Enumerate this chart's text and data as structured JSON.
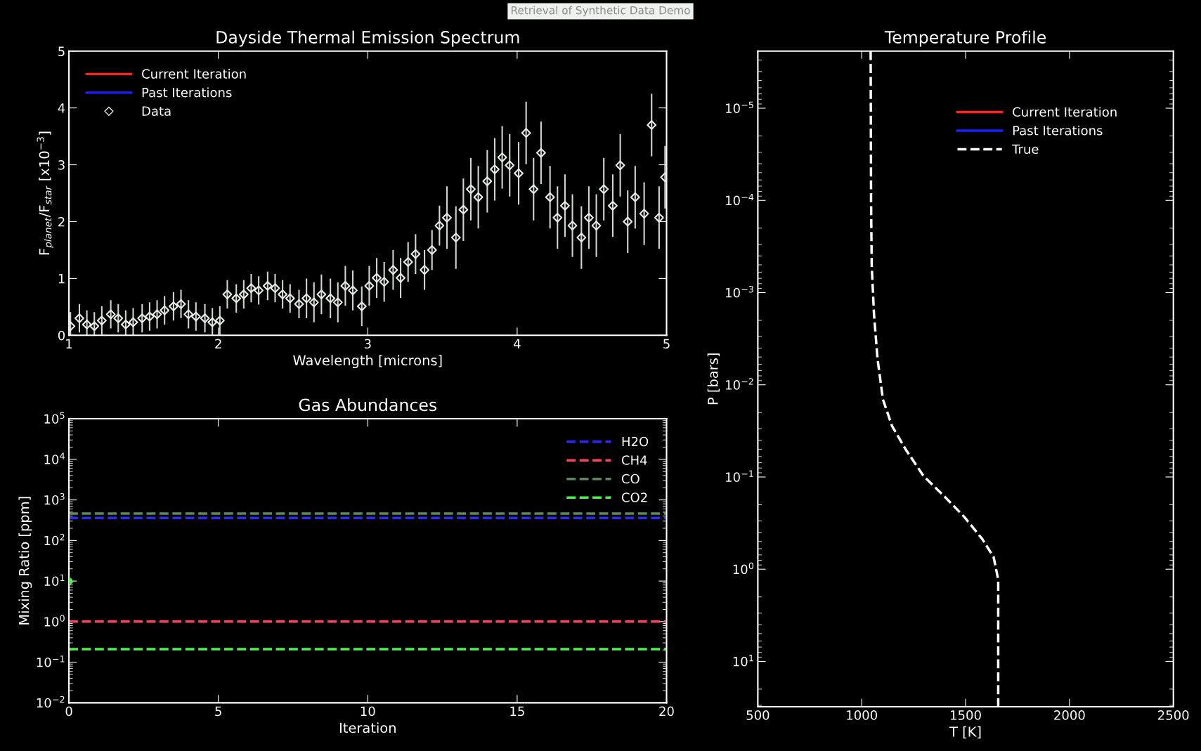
{
  "chart_data": [
    {
      "type": "scatter",
      "title": "Dayside Thermal Emission Spectrum",
      "xlabel": "Wavelength [microns]",
      "ylabel": "F$_{planet}$/F$_{star}$ [x10$^{−3}$]",
      "annotations": [
        "Retrieval of Synthetic Data Demo"
      ],
      "xlim": [
        1,
        5
      ],
      "xticks": [
        1,
        2,
        3,
        4,
        5
      ],
      "ylim": [
        0,
        5
      ],
      "yticks": [
        0,
        1,
        2,
        3,
        4,
        5
      ],
      "grid": false,
      "legend": "top left",
      "series": [
        {
          "name": "Current Iteration",
          "type": "line",
          "color": "#ff2020"
        },
        {
          "name": "Past Iterations",
          "type": "line",
          "color": "#2020ff"
        },
        {
          "name": "Data",
          "color": "#e8ece8",
          "marker": "diamond",
          "x": [
            1.01,
            1.07,
            1.12,
            1.17,
            1.22,
            1.28,
            1.33,
            1.38,
            1.43,
            1.49,
            1.54,
            1.59,
            1.64,
            1.7,
            1.75,
            1.8,
            1.85,
            1.91,
            1.96,
            2.01,
            2.06,
            2.12,
            2.17,
            2.22,
            2.27,
            2.33,
            2.38,
            2.43,
            2.48,
            2.54,
            2.59,
            2.64,
            2.69,
            2.75,
            2.8,
            2.85,
            2.9,
            2.96,
            3.01,
            3.06,
            3.11,
            3.17,
            3.22,
            3.27,
            3.32,
            3.38,
            3.43,
            3.48,
            3.53,
            3.59,
            3.64,
            3.69,
            3.74,
            3.8,
            3.85,
            3.9,
            3.95,
            4.01,
            4.06,
            4.11,
            4.16,
            4.22,
            4.27,
            4.32,
            4.37,
            4.43,
            4.48,
            4.53,
            4.58,
            4.64,
            4.69,
            4.74,
            4.79,
            4.85,
            4.9,
            4.95,
            4.99
          ],
          "values": [
            0.16,
            0.3,
            0.19,
            0.16,
            0.26,
            0.37,
            0.3,
            0.19,
            0.23,
            0.3,
            0.33,
            0.37,
            0.44,
            0.51,
            0.55,
            0.37,
            0.33,
            0.3,
            0.23,
            0.26,
            0.72,
            0.65,
            0.72,
            0.83,
            0.79,
            0.87,
            0.83,
            0.72,
            0.65,
            0.55,
            0.65,
            0.58,
            0.72,
            0.65,
            0.58,
            0.87,
            0.79,
            0.51,
            0.87,
            1.01,
            0.94,
            1.15,
            1.01,
            1.29,
            1.43,
            1.15,
            1.5,
            1.93,
            2.07,
            1.72,
            2.21,
            2.57,
            2.43,
            2.71,
            2.92,
            3.13,
            2.99,
            2.85,
            3.56,
            2.57,
            3.21,
            2.43,
            2.07,
            2.28,
            1.93,
            1.72,
            2.07,
            1.93,
            2.57,
            2.28,
            2.99,
            2.0,
            2.43,
            2.14,
            3.7,
            2.07,
            2.78
          ],
          "errors": [
            0.25,
            0.25,
            0.25,
            0.25,
            0.25,
            0.25,
            0.25,
            0.25,
            0.25,
            0.25,
            0.25,
            0.25,
            0.25,
            0.25,
            0.25,
            0.25,
            0.25,
            0.25,
            0.25,
            0.25,
            0.25,
            0.25,
            0.25,
            0.25,
            0.25,
            0.25,
            0.25,
            0.25,
            0.25,
            0.25,
            0.35,
            0.35,
            0.35,
            0.35,
            0.35,
            0.35,
            0.35,
            0.35,
            0.35,
            0.35,
            0.35,
            0.35,
            0.35,
            0.35,
            0.35,
            0.35,
            0.35,
            0.35,
            0.55,
            0.55,
            0.55,
            0.55,
            0.55,
            0.55,
            0.55,
            0.55,
            0.55,
            0.55,
            0.55,
            0.55,
            0.55,
            0.55,
            0.55,
            0.55,
            0.55,
            0.55,
            0.55,
            0.55,
            0.55,
            0.55,
            0.55,
            0.55,
            0.55,
            0.55,
            0.55,
            0.55,
            0.55
          ]
        }
      ]
    },
    {
      "type": "line",
      "title": "Gas Abundances",
      "xlabel": "Iteration",
      "ylabel": "Mixing Ratio [ppm]",
      "log": "y",
      "xlim": [
        0,
        20
      ],
      "xticks": [
        0,
        5,
        10,
        15,
        20
      ],
      "ylim": [
        0.01,
        100000
      ],
      "yticks": [
        {
          "value": 0.01,
          "label": "10$^{−2}$"
        },
        {
          "value": 0.1,
          "label": "10$^{−1}$"
        },
        {
          "value": 1,
          "label": "10$^{0}$"
        },
        {
          "value": 10,
          "label": "10$^{1}$"
        },
        {
          "value": 100,
          "label": "10$^{2}$"
        },
        {
          "value": 1000,
          "label": "10$^{3}$"
        },
        {
          "value": 10000,
          "label": "10$^{4}$"
        },
        {
          "value": 100000,
          "label": "10$^{5}$"
        }
      ],
      "grid": false,
      "legend": "top right",
      "series": [
        {
          "name": "H2O",
          "color": "#2828ff",
          "line_style": "dashed",
          "x": [
            0,
            20
          ],
          "values": [
            360,
            360
          ]
        },
        {
          "name": "CH4",
          "color": "#ff4060",
          "line_style": "dashed",
          "x": [
            0,
            20
          ],
          "values": [
            1,
            1
          ]
        },
        {
          "name": "CO",
          "color": "#5a8a5a",
          "line_style": "dashed",
          "x": [
            0,
            20
          ],
          "values": [
            460,
            460
          ]
        },
        {
          "name": "CO2",
          "color": "#50f050",
          "line_style": "dashed",
          "x": [
            0,
            20
          ],
          "values": [
            0.21,
            0.21
          ]
        },
        {
          "type": "scatter",
          "color": "#50f050",
          "marker": "circle",
          "x": [
            0
          ],
          "values": [
            10
          ]
        }
      ]
    },
    {
      "type": "line",
      "title": "Temperature Profile",
      "xlabel": "T [K]",
      "ylabel": "P [bars]",
      "log": "y",
      "xlim": [
        500,
        2500
      ],
      "xticks": [
        500,
        1000,
        1500,
        2000,
        2500
      ],
      "ylim": [
        31,
        2.4e-06
      ],
      "yticks": [
        {
          "value": 1e-05,
          "label": "10$^{−5}$"
        },
        {
          "value": 0.0001,
          "label": "10$^{−4}$"
        },
        {
          "value": 0.001,
          "label": "10$^{−3}$"
        },
        {
          "value": 0.01,
          "label": "10$^{−2}$"
        },
        {
          "value": 0.1,
          "label": "10$^{−1}$"
        },
        {
          "value": 1,
          "label": "10$^{0}$"
        },
        {
          "value": 10,
          "label": "10$^{1}$"
        }
      ],
      "grid": false,
      "legend": "top right",
      "series": [
        {
          "name": "Current Iteration",
          "color": "#ff2020"
        },
        {
          "name": "Past Iterations",
          "color": "#2020ff"
        },
        {
          "name": "True",
          "color": "#ffffff",
          "line_style": "dashed",
          "x": [
            1043,
            1045,
            1048,
            1059,
            1076,
            1102,
            1146,
            1211,
            1298,
            1407,
            1493,
            1580,
            1635,
            1657,
            1657
          ],
          "values": [
            2.4e-06,
            0.0001,
            0.0005,
            0.0017,
            0.0052,
            0.0144,
            0.028,
            0.05,
            0.098,
            0.17,
            0.27,
            0.47,
            0.74,
            1.3,
            31
          ]
        }
      ]
    }
  ]
}
